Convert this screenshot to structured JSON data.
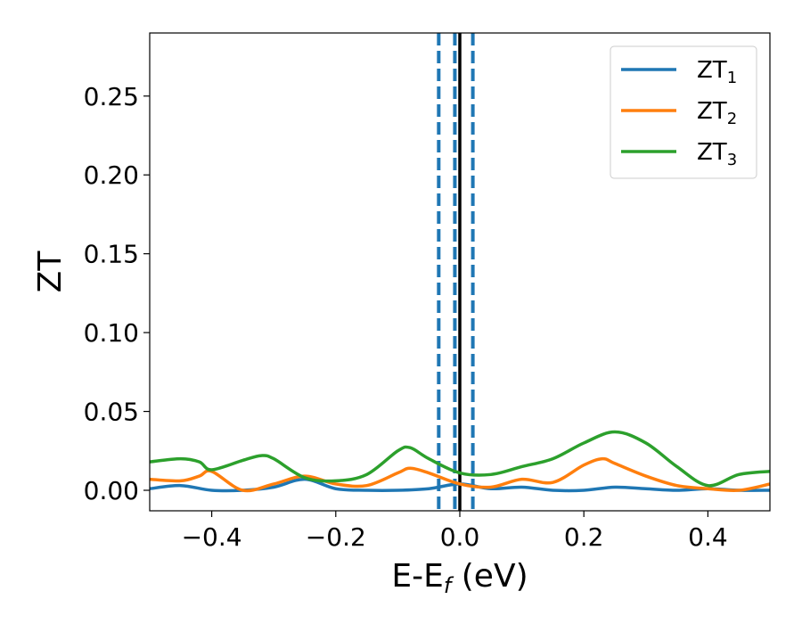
{
  "chart_data": {
    "type": "line",
    "xlabel": {
      "main": "E-E",
      "sub": "f",
      "tail": " (eV)"
    },
    "ylabel": "ZT",
    "xlim": [
      -0.5,
      0.5
    ],
    "ylim": [
      -0.013,
      0.29
    ],
    "xticks": [
      -0.4,
      -0.2,
      0.0,
      0.2,
      0.4
    ],
    "xtick_labels": [
      "−0.4",
      "−0.2",
      "0.0",
      "0.2",
      "0.4"
    ],
    "yticks": [
      0.0,
      0.05,
      0.1,
      0.15,
      0.2,
      0.25
    ],
    "ytick_labels": [
      "0.00",
      "0.05",
      "0.10",
      "0.15",
      "0.20",
      "0.25"
    ],
    "grid": false,
    "legend_position": "top-right",
    "vlines": [
      {
        "x": 0.0,
        "color": "#000000",
        "style": "solid"
      },
      {
        "x": -0.034,
        "color": "#1f77b4",
        "style": "dashed"
      },
      {
        "x": -0.008,
        "color": "#1f77b4",
        "style": "dashed"
      },
      {
        "x": 0.021,
        "color": "#1f77b4",
        "style": "dashed"
      }
    ],
    "series": [
      {
        "name": "ZT",
        "name_sub": "1",
        "color": "#1f77b4",
        "x": [
          -0.5,
          -0.45,
          -0.4,
          -0.35,
          -0.3,
          -0.25,
          -0.2,
          -0.15,
          -0.1,
          -0.05,
          0.0,
          0.05,
          0.1,
          0.15,
          0.2,
          0.25,
          0.3,
          0.35,
          0.4,
          0.45,
          0.5
        ],
        "y": [
          0.001,
          0.003,
          0.0,
          0.0,
          0.002,
          0.007,
          0.001,
          0.0,
          0.0,
          0.001,
          0.004,
          0.001,
          0.002,
          0.0,
          0.0,
          0.002,
          0.001,
          0.0,
          0.001,
          0.0,
          0.0
        ]
      },
      {
        "name": "ZT",
        "name_sub": "2",
        "color": "#ff7f0e",
        "x": [
          -0.5,
          -0.45,
          -0.42,
          -0.4,
          -0.35,
          -0.3,
          -0.25,
          -0.2,
          -0.15,
          -0.1,
          -0.08,
          -0.05,
          0.0,
          0.05,
          0.1,
          0.15,
          0.2,
          0.23,
          0.25,
          0.3,
          0.35,
          0.4,
          0.45,
          0.5
        ],
        "y": [
          0.007,
          0.006,
          0.009,
          0.012,
          0.0,
          0.004,
          0.009,
          0.004,
          0.003,
          0.011,
          0.014,
          0.011,
          0.004,
          0.002,
          0.007,
          0.005,
          0.016,
          0.02,
          0.017,
          0.009,
          0.003,
          0.001,
          0.0,
          0.004
        ]
      },
      {
        "name": "ZT",
        "name_sub": "3",
        "color": "#2ca02c",
        "x": [
          -0.5,
          -0.45,
          -0.42,
          -0.4,
          -0.35,
          -0.32,
          -0.3,
          -0.25,
          -0.2,
          -0.15,
          -0.1,
          -0.08,
          -0.05,
          0.0,
          0.05,
          0.1,
          0.15,
          0.2,
          0.25,
          0.3,
          0.35,
          0.4,
          0.45,
          0.5
        ],
        "y": [
          0.018,
          0.02,
          0.018,
          0.013,
          0.019,
          0.022,
          0.02,
          0.008,
          0.006,
          0.01,
          0.025,
          0.027,
          0.02,
          0.011,
          0.01,
          0.015,
          0.02,
          0.03,
          0.037,
          0.03,
          0.015,
          0.003,
          0.01,
          0.012
        ]
      }
    ]
  }
}
